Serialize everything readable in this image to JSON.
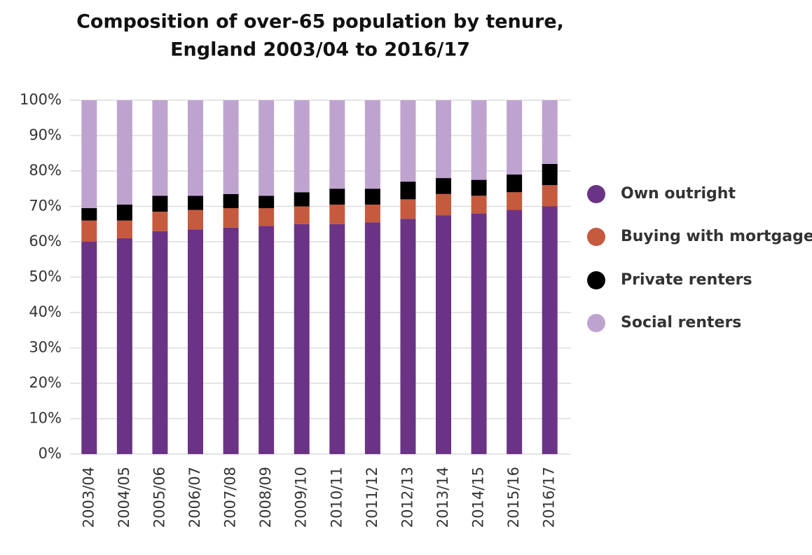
{
  "chart_data": {
    "type": "stacked_bar",
    "title": [
      "Composition of over-65 population by tenure,",
      "England 2003/04 to 2016/17"
    ],
    "categories": [
      "2003/04",
      "2004/05",
      "2005/06",
      "2006/07",
      "2007/08",
      "2008/09",
      "2009/10",
      "2010/11",
      "2011/12",
      "2012/13",
      "2013/14",
      "2014/15",
      "2015/16",
      "2016/17"
    ],
    "series": [
      {
        "name": "Own outright",
        "color": "#6b3385",
        "values": [
          60,
          61,
          63,
          63.5,
          64,
          64.5,
          65,
          65,
          65.5,
          66.5,
          67.5,
          68,
          69,
          70
        ]
      },
      {
        "name": "Buying with mortgage",
        "color": "#c65a3e",
        "values": [
          6,
          5,
          5.5,
          5.5,
          5.5,
          5,
          5,
          5.5,
          5,
          5.5,
          6,
          5,
          5,
          6
        ]
      },
      {
        "name": "Private renters",
        "color": "#000000",
        "values": [
          3.5,
          4.5,
          4.5,
          4,
          4,
          3.5,
          4,
          4.5,
          4.5,
          5,
          4.5,
          4.5,
          5,
          6
        ]
      },
      {
        "name": "Social renters",
        "color": "#bfa3cf",
        "values": [
          30.5,
          29.5,
          27,
          27,
          26.5,
          27,
          26,
          25,
          25,
          23,
          22,
          22.5,
          21,
          18
        ]
      }
    ],
    "ylim": [
      0,
      100
    ],
    "yticks": [
      {
        "value": 0,
        "label": "0%"
      },
      {
        "value": 10,
        "label": "10%"
      },
      {
        "value": 20,
        "label": "20%"
      },
      {
        "value": 30,
        "label": "30%"
      },
      {
        "value": 40,
        "label": "40%"
      },
      {
        "value": 50,
        "label": "50%"
      },
      {
        "value": 60,
        "label": "60%"
      },
      {
        "value": 70,
        "label": "70%"
      },
      {
        "value": 80,
        "label": "80%"
      },
      {
        "value": 90,
        "label": "90%"
      },
      {
        "value": 100,
        "label": "100%"
      }
    ],
    "grid": true,
    "legend": "right"
  }
}
